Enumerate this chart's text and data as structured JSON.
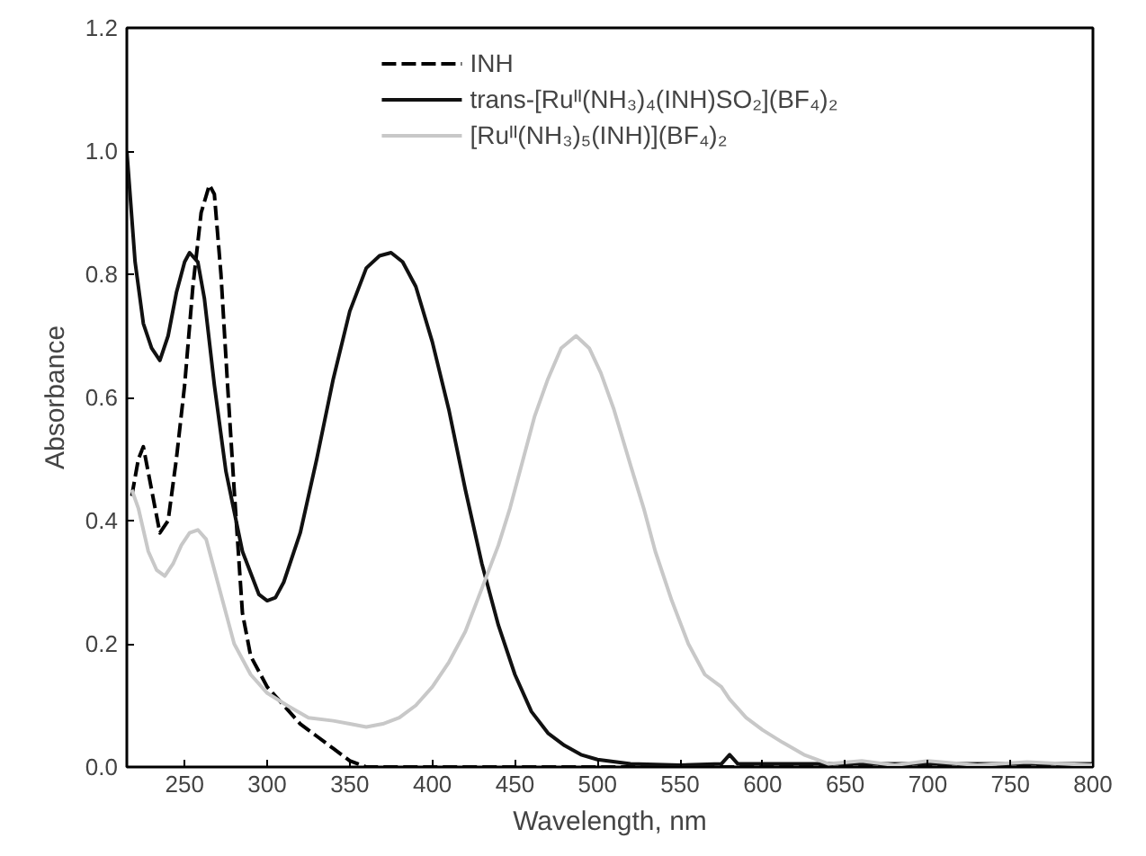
{
  "chart_data": {
    "type": "line",
    "xlabel": "Wavelength, nm",
    "ylabel": "Absorbance",
    "xlim": [
      215,
      800
    ],
    "ylim": [
      0,
      1.2
    ],
    "xticks": [
      250,
      300,
      350,
      400,
      450,
      500,
      550,
      600,
      650,
      700,
      750,
      800
    ],
    "yticks": [
      {
        "value": 0,
        "label": "0.0"
      },
      {
        "value": 0.2,
        "label": "0.2"
      },
      {
        "value": 0.4,
        "label": "0.4"
      },
      {
        "value": 0.6,
        "label": "0.6"
      },
      {
        "value": 0.8,
        "label": "0.8"
      },
      {
        "value": 1.0,
        "label": "1.0"
      },
      {
        "value": 1.2,
        "label": "1.2"
      }
    ],
    "grid": false,
    "legend": "top",
    "marker": "none",
    "series": [
      {
        "name": "INH",
        "color": "#000000",
        "line_style": "dashed",
        "x": [
          218,
          222,
          225,
          230,
          235,
          240,
          245,
          250,
          255,
          260,
          265,
          268,
          272,
          276,
          280,
          285,
          290,
          300,
          310,
          320,
          330,
          340,
          350,
          360,
          400,
          500,
          600,
          700,
          800
        ],
        "values": [
          0.44,
          0.5,
          0.52,
          0.45,
          0.38,
          0.4,
          0.5,
          0.62,
          0.78,
          0.9,
          0.945,
          0.93,
          0.8,
          0.62,
          0.45,
          0.25,
          0.18,
          0.13,
          0.1,
          0.07,
          0.05,
          0.03,
          0.01,
          0.0,
          0.0,
          0.0,
          0.0,
          0.0,
          0.0
        ]
      },
      {
        "name": "trans-[Ruᴵᴵ(NH₃)₄(INH)SO₂](BF₄)₂",
        "color": "#111111",
        "line_style": "solid",
        "x": [
          215,
          220,
          225,
          230,
          235,
          240,
          245,
          250,
          253,
          258,
          262,
          268,
          275,
          285,
          295,
          300,
          305,
          310,
          320,
          330,
          340,
          350,
          360,
          368,
          375,
          382,
          390,
          400,
          410,
          420,
          430,
          440,
          450,
          460,
          470,
          480,
          490,
          500,
          520,
          550,
          575,
          580,
          585,
          600,
          700,
          800
        ],
        "values": [
          1.0,
          0.82,
          0.72,
          0.68,
          0.66,
          0.7,
          0.77,
          0.82,
          0.835,
          0.82,
          0.76,
          0.62,
          0.48,
          0.35,
          0.28,
          0.27,
          0.275,
          0.3,
          0.38,
          0.5,
          0.63,
          0.74,
          0.81,
          0.83,
          0.835,
          0.82,
          0.78,
          0.69,
          0.58,
          0.45,
          0.33,
          0.23,
          0.15,
          0.09,
          0.055,
          0.035,
          0.02,
          0.012,
          0.005,
          0.003,
          0.005,
          0.02,
          0.005,
          0.005,
          0.005,
          0.005
        ]
      },
      {
        "name": "[Ruᴵᴵ(NH₃)₅(INH)](BF₄)₂",
        "color": "#c8c8c8",
        "line_style": "solid",
        "x": [
          218,
          222,
          228,
          233,
          238,
          243,
          248,
          253,
          258,
          263,
          268,
          275,
          280,
          290,
          300,
          312,
          325,
          340,
          350,
          360,
          370,
          380,
          390,
          400,
          410,
          420,
          430,
          440,
          447,
          455,
          462,
          470,
          478,
          487,
          495,
          502,
          510,
          520,
          528,
          535,
          545,
          555,
          565,
          575,
          580,
          590,
          600,
          612,
          625,
          640,
          660,
          680,
          700,
          730,
          760,
          800
        ],
        "values": [
          0.45,
          0.42,
          0.35,
          0.32,
          0.31,
          0.33,
          0.36,
          0.38,
          0.385,
          0.37,
          0.32,
          0.25,
          0.2,
          0.15,
          0.12,
          0.1,
          0.08,
          0.075,
          0.07,
          0.065,
          0.07,
          0.08,
          0.1,
          0.13,
          0.17,
          0.22,
          0.29,
          0.36,
          0.42,
          0.5,
          0.57,
          0.63,
          0.68,
          0.7,
          0.68,
          0.64,
          0.58,
          0.49,
          0.42,
          0.35,
          0.27,
          0.2,
          0.15,
          0.13,
          0.11,
          0.08,
          0.06,
          0.04,
          0.02,
          0.005,
          0.01,
          0.003,
          0.01,
          0.003,
          0.008,
          0.003
        ]
      }
    ]
  }
}
